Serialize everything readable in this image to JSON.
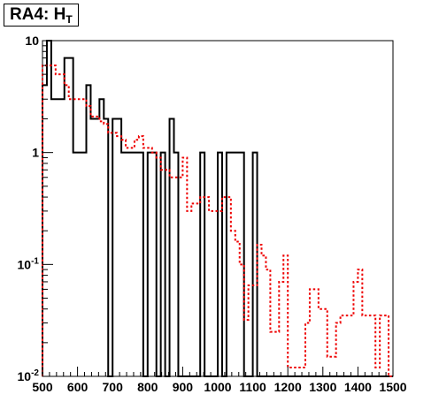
{
  "title": {
    "main": "RA4: H",
    "sub": "T"
  },
  "chart_data": {
    "type": "histogram",
    "title": "RA4: H_T",
    "xlabel": "",
    "ylabel": "",
    "xlim": [
      500,
      1500
    ],
    "ylim": [
      0.01,
      10
    ],
    "ylog": true,
    "grid": false,
    "x_ticks": [
      500,
      600,
      700,
      800,
      900,
      1000,
      1100,
      1200,
      1300,
      1400,
      1500
    ],
    "y_ticks": [
      {
        "value": 0.01,
        "base": "10",
        "exp": "-2"
      },
      {
        "value": 0.1,
        "base": "10",
        "exp": "-1"
      },
      {
        "value": 1,
        "base": "1",
        "exp": ""
      },
      {
        "value": 10,
        "base": "10",
        "exp": ""
      }
    ],
    "bin_edges": [
      500,
      512.5,
      525,
      537.5,
      550,
      562.5,
      575,
      587.5,
      600,
      612.5,
      625,
      637.5,
      650,
      662.5,
      675,
      687.5,
      700,
      712.5,
      725,
      737.5,
      750,
      762.5,
      775,
      787.5,
      800,
      812.5,
      825,
      837.5,
      850,
      862.5,
      875,
      887.5,
      900,
      912.5,
      925,
      937.5,
      950,
      962.5,
      975,
      987.5,
      1000,
      1012.5,
      1025,
      1037.5,
      1050,
      1062.5,
      1075,
      1087.5,
      1100,
      1112.5,
      1125,
      1137.5,
      1150,
      1162.5,
      1175,
      1187.5,
      1200,
      1212.5,
      1225,
      1237.5,
      1250,
      1262.5,
      1275,
      1287.5,
      1300,
      1312.5,
      1325,
      1337.5,
      1350,
      1362.5,
      1375,
      1387.5,
      1400,
      1412.5,
      1425,
      1437.5,
      1450,
      1462.5,
      1475,
      1487.5,
      1500
    ],
    "series": [
      {
        "color": "#000000",
        "style": "solid",
        "values": [
          4,
          10,
          3,
          3,
          3,
          7,
          7,
          1,
          1,
          1,
          4,
          2,
          2,
          3,
          2,
          0.01,
          2,
          2,
          1,
          1,
          1,
          1,
          1,
          0.01,
          1,
          1,
          0.01,
          1,
          0.01,
          2,
          1,
          0.01,
          0.01,
          0.01,
          0.01,
          0.01,
          1,
          0.01,
          0.01,
          0.01,
          1,
          0.01,
          1,
          1,
          1,
          1,
          0.01,
          0.01,
          1,
          0.01,
          0.01,
          0.01,
          0.01,
          0.01,
          0.01,
          0.01,
          0.01,
          0.01,
          0.01,
          0.01,
          0.01,
          0.01,
          0.01,
          0.01,
          0.01,
          0.01,
          0.01,
          0.01,
          0.01,
          0.01,
          0.01,
          0.01,
          0.01,
          0.01,
          0.01,
          0.01,
          0.01,
          0.01,
          0.01,
          0.01
        ]
      },
      {
        "color": "#ee0000",
        "style": "dotted",
        "values": [
          6,
          6,
          6,
          5,
          5,
          4,
          3,
          3,
          3,
          3,
          2.6,
          2.1,
          2.1,
          1.9,
          1.8,
          1.5,
          1.5,
          1.4,
          1.3,
          1.1,
          1.1,
          1.3,
          1.4,
          1.1,
          1.1,
          1,
          0.9,
          0.7,
          0.7,
          0.6,
          0.6,
          0.6,
          0.9,
          0.3,
          0.35,
          0.35,
          0.4,
          0.4,
          0.3,
          0.3,
          0.3,
          0.4,
          0.4,
          0.2,
          0.16,
          0.1,
          0.032,
          0.065,
          0.065,
          0.15,
          0.12,
          0.09,
          0.025,
          0.025,
          0.07,
          0.12,
          0.012,
          0.012,
          0.012,
          0.012,
          0.03,
          0.06,
          0.06,
          0.04,
          0.04,
          0.015,
          0.015,
          0.03,
          0.035,
          0.035,
          0.035,
          0.07,
          0.09,
          0.035,
          0.035,
          0.035,
          0.012,
          0.035,
          0.035,
          0.01
        ]
      }
    ]
  }
}
